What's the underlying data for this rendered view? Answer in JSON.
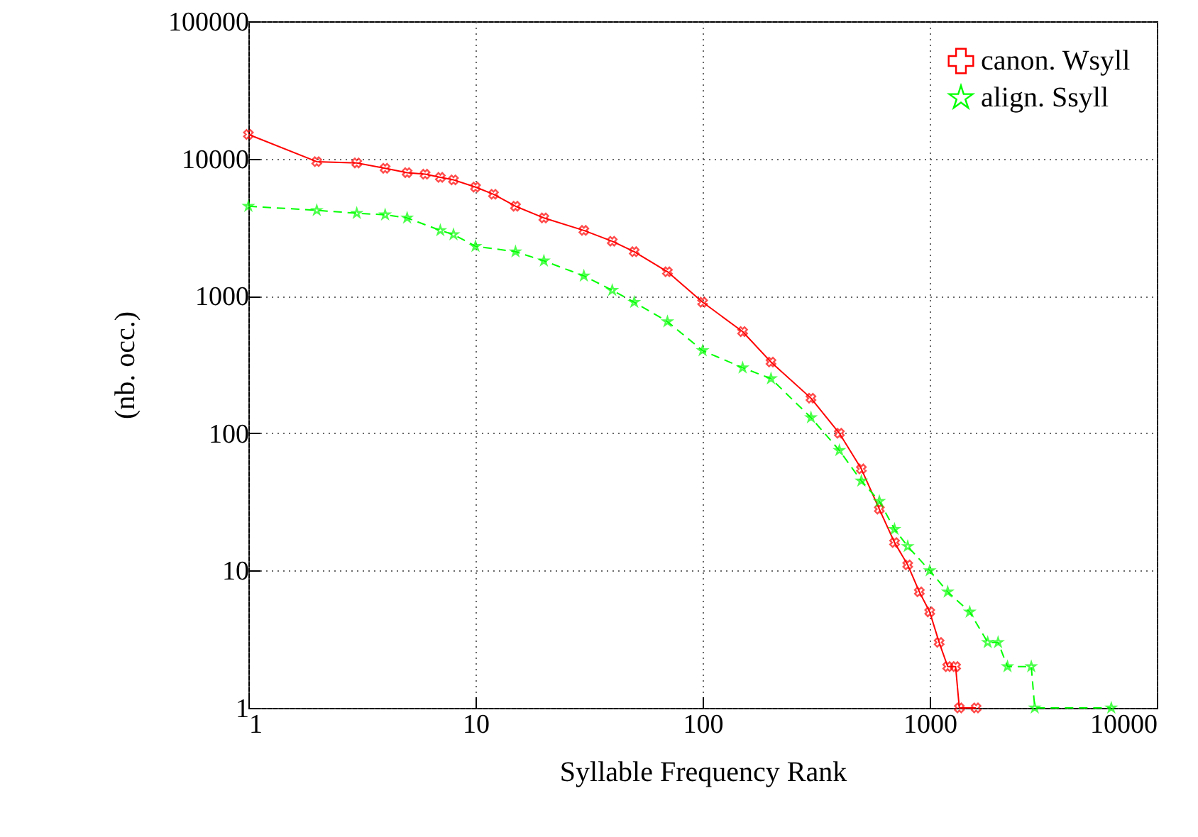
{
  "chart_data": {
    "type": "line",
    "xlabel": "Syllable Frequency Rank",
    "ylabel": "(nb. occ.)",
    "log": "xy",
    "grid": true,
    "legend": "top right",
    "xlim": [
      1,
      10000
    ],
    "xticks": [
      1,
      10,
      100,
      1000,
      10000
    ],
    "ylim": [
      1,
      100000
    ],
    "yticks": [
      1,
      10,
      100,
      1000,
      10000,
      100000
    ],
    "series": [
      {
        "name": "canon. Wsyll",
        "color": "#ff0000",
        "marker": "cross",
        "line_style": "solid",
        "x": [
          1,
          2,
          3,
          4,
          5,
          6,
          7,
          8,
          10,
          12,
          15,
          20,
          30,
          40,
          50,
          70,
          100,
          150,
          200,
          300,
          400,
          500,
          600,
          700,
          800,
          900,
          1000,
          1100,
          1200,
          1300,
          1350,
          1600
        ],
        "values": [
          15000,
          9500,
          9300,
          8500,
          7900,
          7700,
          7300,
          7000,
          6200,
          5500,
          4500,
          3700,
          3000,
          2500,
          2100,
          1500,
          900,
          550,
          330,
          180,
          100,
          55,
          28,
          16,
          11,
          7,
          5,
          3,
          2,
          2,
          1,
          1
        ]
      },
      {
        "name": "align. Ssyll",
        "color": "#00ff00",
        "marker": "star",
        "line_style": "dashed",
        "x": [
          1,
          2,
          3,
          4,
          5,
          7,
          8,
          10,
          15,
          20,
          30,
          40,
          50,
          70,
          100,
          150,
          200,
          300,
          400,
          500,
          600,
          700,
          800,
          1000,
          1200,
          1500,
          1800,
          2000,
          2200,
          2800,
          2900,
          6300
        ],
        "values": [
          4500,
          4200,
          4000,
          3900,
          3700,
          3000,
          2800,
          2300,
          2100,
          1800,
          1400,
          1100,
          900,
          650,
          400,
          300,
          250,
          130,
          75,
          45,
          32,
          20,
          15,
          10,
          7,
          5,
          3,
          3,
          2,
          2,
          1,
          1
        ]
      }
    ]
  }
}
